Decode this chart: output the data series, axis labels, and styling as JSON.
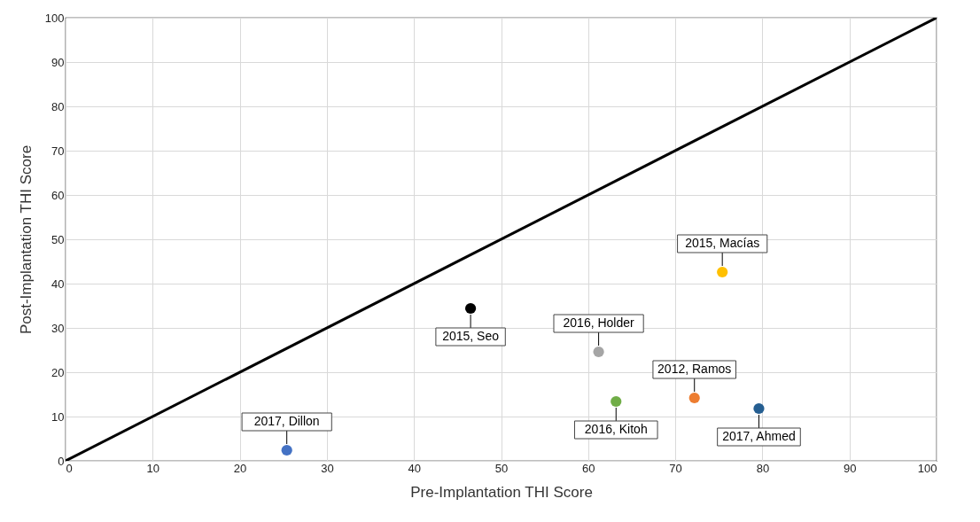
{
  "chart_data": {
    "type": "scatter",
    "xlabel": "Pre-Implantation THI Score",
    "ylabel": "Post-Implantation THI Score",
    "xlim": [
      0,
      100
    ],
    "ylim": [
      0,
      100
    ],
    "xticks": [
      0,
      10,
      20,
      30,
      40,
      50,
      60,
      70,
      80,
      90,
      100
    ],
    "yticks": [
      0,
      10,
      20,
      30,
      40,
      50,
      60,
      70,
      80,
      90,
      100
    ],
    "grid": true,
    "marker": "circle",
    "series": [
      {
        "color": "#4472c4",
        "x": [
          25.4
        ],
        "values": [
          2.4
        ]
      },
      {
        "color": "#000000",
        "x": [
          46.5
        ],
        "values": [
          34.4
        ]
      },
      {
        "color": "#a5a5a5",
        "x": [
          61.2
        ],
        "values": [
          24.6
        ]
      },
      {
        "color": "#70ad47",
        "x": [
          63.2
        ],
        "values": [
          13.4
        ]
      },
      {
        "color": "#ed7d31",
        "x": [
          72.2
        ],
        "values": [
          14.2
        ]
      },
      {
        "color": "#ffc000",
        "x": [
          75.4
        ],
        "values": [
          42.6
        ]
      },
      {
        "color": "#255e91",
        "x": [
          79.6
        ],
        "values": [
          11.8
        ]
      },
      {
        "type": "line",
        "color": "#000000",
        "x": [
          0,
          100
        ],
        "values": [
          0,
          100
        ],
        "marker": "none"
      }
    ],
    "annotations": [
      {
        "text": "2017, Dillon",
        "x": 25.4,
        "y": 2.4
      },
      {
        "text": "2015, Seo",
        "x": 46.5,
        "y": 34.4
      },
      {
        "text": "2016, Holder",
        "x": 61.2,
        "y": 24.6
      },
      {
        "text": "2016, Kitoh",
        "x": 63.2,
        "y": 13.4
      },
      {
        "text": "2012, Ramos",
        "x": 72.2,
        "y": 14.2
      },
      {
        "text": "2015, Macías",
        "x": 75.4,
        "y": 42.6
      },
      {
        "text": "2017, Ahmed",
        "x": 79.6,
        "y": 11.8
      }
    ]
  }
}
